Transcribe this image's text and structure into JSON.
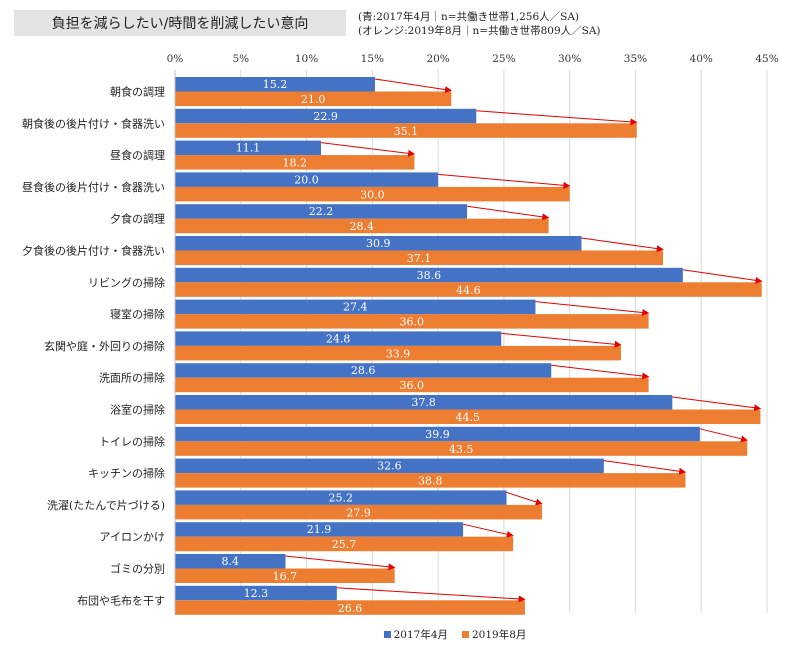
{
  "title": "負担を減らしたい/時間を削減したい意向",
  "notes": {
    "line1": "(青:2017年4月｜n=共働き世帯1,256人／SA)",
    "line2": "(オレンジ:2019年8月｜n=共働き世帯809人／SA)"
  },
  "colors": {
    "blue": "#4472c4",
    "orange": "#ed7d31",
    "arrow": "#e60000",
    "grid": "#d9d9d9"
  },
  "chart_data": {
    "type": "bar",
    "orientation": "horizontal",
    "categories": [
      "朝食の調理",
      "朝食後の後片付け・食器洗い",
      "昼食の調理",
      "昼食後の後片付け・食器洗い",
      "夕食の調理",
      "夕食後の後片付け・食器洗い",
      "リビングの掃除",
      "寝室の掃除",
      "玄関や庭・外回りの掃除",
      "洗面所の掃除",
      "浴室の掃除",
      "トイレの掃除",
      "キッチンの掃除",
      "洗濯(たたんで片づける)",
      "アイロンかけ",
      "ゴミの分別",
      "布団や毛布を干す"
    ],
    "series": [
      {
        "name": "2017年4月",
        "color": "#4472c4",
        "values": [
          15.2,
          22.9,
          11.1,
          20.0,
          22.2,
          30.9,
          38.6,
          27.4,
          24.8,
          28.6,
          37.8,
          39.9,
          32.6,
          25.2,
          21.9,
          8.4,
          12.3
        ],
        "labels": [
          "15.2",
          "22.9",
          "11.1",
          "20.0",
          "22.2",
          "30.9",
          "38.6",
          "27.4",
          "24.8",
          "28.6",
          "37.8",
          "39.9",
          "32.6",
          "25.2",
          "21.9",
          "8.4",
          "12.3"
        ]
      },
      {
        "name": "2019年8月",
        "color": "#ed7d31",
        "values": [
          21.0,
          35.1,
          18.2,
          30.0,
          28.4,
          37.1,
          44.6,
          36.0,
          33.9,
          36.0,
          44.5,
          43.5,
          38.8,
          27.9,
          25.7,
          16.7,
          26.6
        ],
        "labels": [
          "21.0",
          "35.1",
          "18.2",
          "30.0",
          "28.4",
          "37.1",
          "44.6",
          "36.0",
          "33.9",
          "36.0",
          "44.5",
          "43.5",
          "38.8",
          "27.9",
          "25.7",
          "16.7",
          "26.6"
        ]
      }
    ],
    "xlim": [
      0,
      45
    ],
    "xticks": [
      0,
      5,
      10,
      15,
      20,
      25,
      30,
      35,
      40,
      45
    ],
    "xtick_labels": [
      "0%",
      "5%",
      "10%",
      "15%",
      "20%",
      "25%",
      "30%",
      "35%",
      "40%",
      "45%"
    ],
    "legend_position": "bottom",
    "annotations": "red arrows from 2017 value to 2019 value for each category"
  }
}
